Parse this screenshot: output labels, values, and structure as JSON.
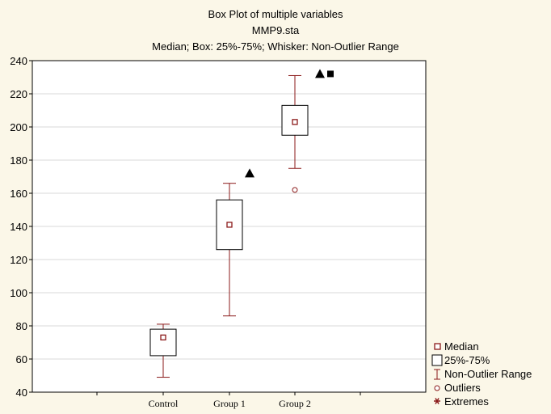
{
  "chart_data": {
    "type": "box",
    "title": "Box Plot of multiple variables",
    "subtitle": "MMP9.sta",
    "subtitle2": "Median; Box: 25%-75%; Whisker: Non-Outlier Range",
    "categories": [
      "Control",
      "Group 1",
      "Group 2"
    ],
    "ylim": [
      40,
      240
    ],
    "yticks": [
      40,
      60,
      80,
      100,
      120,
      140,
      160,
      180,
      200,
      220,
      240
    ],
    "grid": true,
    "boxes": [
      {
        "median": 73,
        "q1": 62,
        "q3": 78,
        "min": 49,
        "max": 81,
        "outliers": []
      },
      {
        "median": 141,
        "q1": 126,
        "q3": 156,
        "min": 86,
        "max": 166,
        "outliers": []
      },
      {
        "median": 203,
        "q1": 195,
        "q3": 213,
        "min": 175,
        "max": 231,
        "outliers": [
          162
        ]
      }
    ],
    "annotations": [
      {
        "category": "Group 1",
        "marker": "triangle",
        "y": 172
      },
      {
        "category": "Group 2",
        "marker": "triangle",
        "y": 232
      },
      {
        "category": "Group 2",
        "marker": "square",
        "y": 232
      }
    ],
    "legend": {
      "position": "bottom-right",
      "items": [
        "Median",
        "25%-75%",
        "Non-Outlier Range",
        "Outliers",
        "Extremes"
      ]
    },
    "colors": {
      "whisker": "#8b1a1a",
      "box": "#000000",
      "median": "#8b1a1a",
      "grid": "#d8d8d8"
    }
  }
}
